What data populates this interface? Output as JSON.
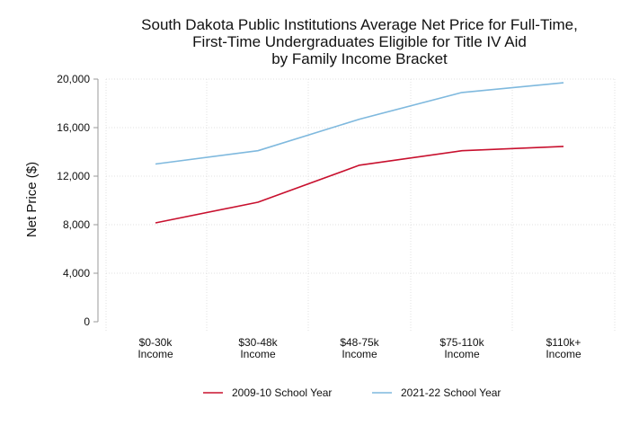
{
  "chart_data": {
    "type": "line",
    "title_lines": [
      "South Dakota Public Institutions Average Net Price for Full-Time,",
      "First-Time Undergraduates Eligible for Title IV Aid",
      "by Family Income Bracket"
    ],
    "ylabel": "Net Price ($)",
    "xlabel": "",
    "ylim": [
      0,
      20000
    ],
    "yticks": [
      0,
      4000,
      8000,
      12000,
      16000,
      20000
    ],
    "ytick_labels": [
      "0",
      "4,000",
      "8,000",
      "12,000",
      "16,000",
      "20,000"
    ],
    "categories": [
      [
        "$0-30k",
        "Income"
      ],
      [
        "$30-48k",
        "Income"
      ],
      [
        "$48-75k",
        "Income"
      ],
      [
        "$75-110k",
        "Income"
      ],
      [
        "$110k+",
        "Income"
      ]
    ],
    "grid": true,
    "legend_position": "bottom",
    "series": [
      {
        "name": "2009-10 School Year",
        "color": "#c8102e",
        "values": [
          8150,
          9850,
          12900,
          14100,
          14450
        ]
      },
      {
        "name": "2021-22 School Year",
        "color": "#7fb9de",
        "values": [
          13000,
          14100,
          16700,
          18900,
          19700
        ]
      }
    ]
  }
}
